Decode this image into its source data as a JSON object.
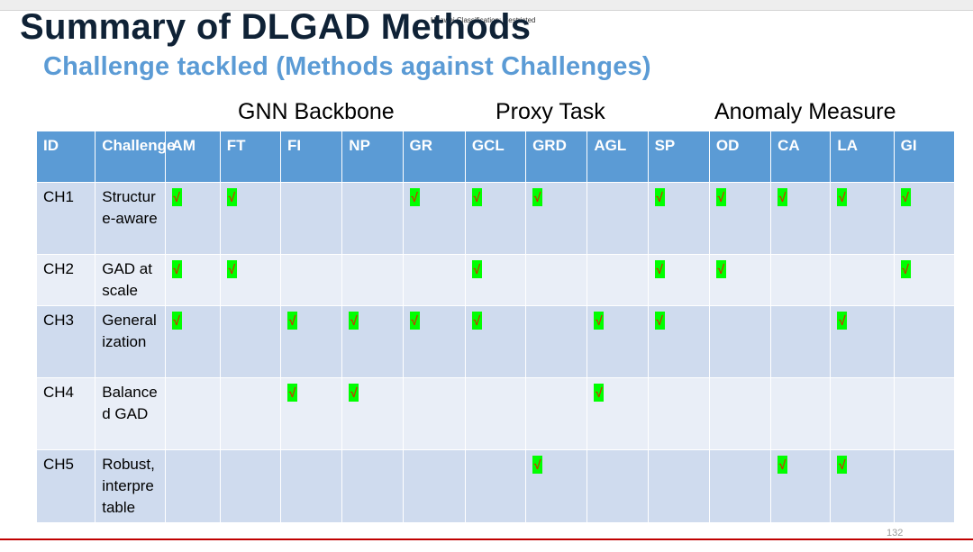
{
  "slide": {
    "classification": "Huawei Classification: Restricted",
    "title": "Summary of DLGAD Methods",
    "subtitle": "Challenge tackled (Methods against Challenges)",
    "page_number": "132"
  },
  "groups": [
    "GNN Backbone",
    "Proxy Task",
    "Anomaly Measure"
  ],
  "table": {
    "columns": [
      "ID",
      "Challenge",
      "AM",
      "FT",
      "FI",
      "NP",
      "GR",
      "GCL",
      "GRD",
      "AGL",
      "SP",
      "OD",
      "CA",
      "LA",
      "GI"
    ],
    "check_symbol": "√",
    "rows": [
      {
        "id": "CH1",
        "challenge": "Structure-aware",
        "checks": [
          "AM",
          "FT",
          "GR",
          "GCL",
          "GRD",
          "SP",
          "OD",
          "CA",
          "LA",
          "GI"
        ]
      },
      {
        "id": "CH2",
        "challenge": "GAD at scale",
        "checks": [
          "AM",
          "FT",
          "GCL",
          "SP",
          "OD",
          "GI"
        ]
      },
      {
        "id": "CH3",
        "challenge": "Generalization",
        "checks": [
          "AM",
          "FI",
          "NP",
          "GR",
          "GCL",
          "AGL",
          "SP",
          "LA"
        ]
      },
      {
        "id": "CH4",
        "challenge": "Balanced GAD",
        "checks": [
          "FI",
          "NP",
          "AGL"
        ]
      },
      {
        "id": "CH5",
        "challenge": "Robust, interpretable",
        "checks": [
          "GRD",
          "CA",
          "LA"
        ]
      }
    ]
  },
  "colors": {
    "title": "#0f2236",
    "subtitle": "#5b9bd5",
    "header_bg": "#5b9bd5",
    "row_odd": "#cfdbee",
    "row_even": "#e9eef7",
    "check_bg": "#00ff00",
    "check_mark": "#cc3300",
    "bottom_line": "#c00000"
  }
}
